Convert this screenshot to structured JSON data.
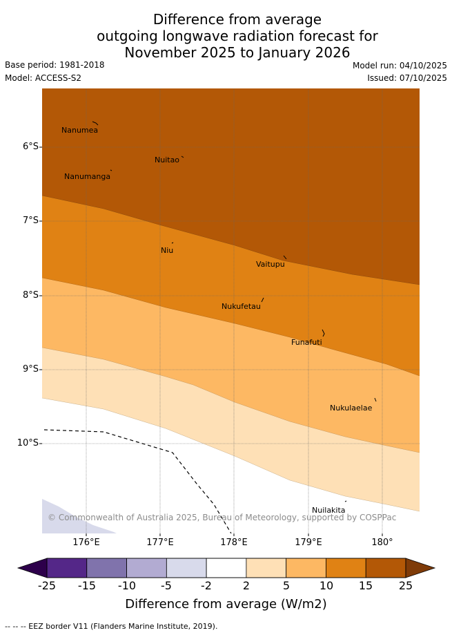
{
  "title": {
    "line1": "Difference from average",
    "line2": "outgoing longwave radiation forecast for",
    "line3": "November 2025 to January 2026"
  },
  "meta": {
    "base_period": "Base period: 1981-2018",
    "model": "Model: ACCESS-S2",
    "model_run": "Model run: 04/10/2025",
    "issued": "Issued: 07/10/2025"
  },
  "map": {
    "lat_labels": [
      "6°S",
      "7°S",
      "8°S",
      "9°S",
      "10°S"
    ],
    "lon_labels": [
      "176°E",
      "177°E",
      "178°E",
      "179°E",
      "180°"
    ],
    "places": {
      "nanumea": "Nanumea",
      "nuitao": "Nuitao",
      "nanumanga": "Nanumanga",
      "niu": "Niu",
      "vaitupu": "Vaitupu",
      "nukufetau": "Nukufetau",
      "funafuti": "Funafuti",
      "nukulaelae": "Nukulaelae",
      "nuilakita": "Nuilakita"
    },
    "copyright": "© Commonwealth of Australia 2025, Bureau of Meteorology, supported by COSPPac",
    "colors": {
      "band_25": "#b35806",
      "band_15": "#e08214",
      "band_10": "#fdb863",
      "band_5": "#fee0b6",
      "band_2": "#ffffff",
      "band_m2": "#d8daeb"
    }
  },
  "colorbar": {
    "ticks": [
      "-25",
      "-15",
      "-10",
      "-5",
      "-2",
      "2",
      "5",
      "10",
      "15",
      "25"
    ],
    "colors": [
      "#542788",
      "#8073ac",
      "#b2abd2",
      "#d8daeb",
      "#ffffff",
      "#fee0b6",
      "#fdb863",
      "#e08214",
      "#b35806"
    ],
    "low_extend_color": "#2d004b",
    "high_extend_color": "#7f3b08",
    "label": "Difference from average (W/m2)"
  },
  "footer": {
    "legend": "--  --  -- EEZ border V11 (Flanders Marine Institute, 2019)."
  }
}
